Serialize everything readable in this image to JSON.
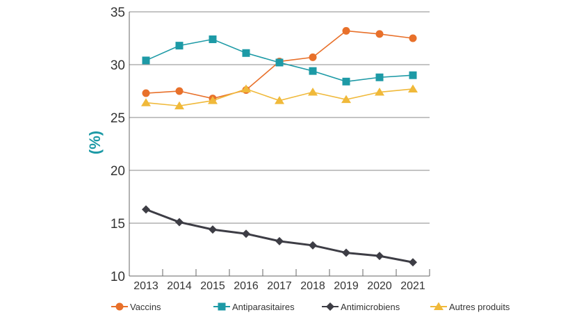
{
  "chart_data": {
    "type": "line",
    "title": "",
    "xlabel": "",
    "ylabel": "(%)",
    "ylim": [
      10,
      35
    ],
    "yticks": [
      10,
      15,
      20,
      25,
      30,
      35
    ],
    "grid": "horizontal",
    "legend_position": "bottom",
    "categories": [
      "2013",
      "2014",
      "2015",
      "2016",
      "2017",
      "2018",
      "2019",
      "2020",
      "2021"
    ],
    "series": [
      {
        "name": "Vaccins",
        "color": "#e8702a",
        "marker": "circle",
        "values": [
          27.3,
          27.5,
          26.8,
          27.6,
          30.3,
          30.7,
          33.2,
          32.9,
          32.5
        ]
      },
      {
        "name": "Antiparasitaires",
        "color": "#1d9aa6",
        "marker": "square",
        "values": [
          30.4,
          31.8,
          32.4,
          31.1,
          30.2,
          29.4,
          28.4,
          28.8,
          29.0
        ]
      },
      {
        "name": "Antimicrobiens",
        "color": "#3d3d45",
        "marker": "diamond",
        "values": [
          16.3,
          15.1,
          14.4,
          14.0,
          13.3,
          12.9,
          12.2,
          11.9,
          11.3
        ]
      },
      {
        "name": "Autres produits",
        "color": "#f0b93a",
        "marker": "triangle",
        "values": [
          26.4,
          26.1,
          26.6,
          27.7,
          26.6,
          27.4,
          26.7,
          27.4,
          27.7
        ]
      }
    ]
  }
}
